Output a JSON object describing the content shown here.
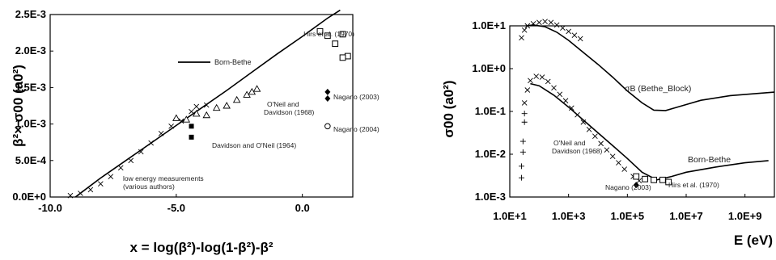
{
  "chart_data": [
    {
      "type": "scatter",
      "title": "",
      "xlabel": "x = log(β²)-log(1-β²)-β²",
      "ylabel": "β²× σ00 (a0²)",
      "xlim": [
        -10,
        2
      ],
      "ylim": [
        0,
        0.0025
      ],
      "x_ticks": [
        "-10.0",
        "-5.0",
        "0.0"
      ],
      "y_ticks": [
        "0.0E+0",
        "5.0E-4",
        "1.0E-3",
        "1.5E-3",
        "2.0E-3",
        "2.5E-3"
      ],
      "legend": {
        "label": "Born-Bethe",
        "position": "upper-left"
      },
      "series": [
        {
          "name": "Born-Bethe",
          "mark": "line",
          "points": [
            [
              -9.0,
              0.0
            ],
            [
              -8.5,
              0.00013
            ],
            [
              -8.0,
              0.00026
            ],
            [
              -7.0,
              0.0005
            ],
            [
              -6.0,
              0.00074
            ],
            [
              -5.0,
              0.00098
            ],
            [
              -4.0,
              0.00122
            ],
            [
              -3.0,
              0.00146
            ],
            [
              -2.0,
              0.00171
            ],
            [
              -1.0,
              0.00196
            ],
            [
              0.0,
              0.0022
            ],
            [
              1.0,
              0.00245
            ],
            [
              1.5,
              0.00256
            ]
          ]
        },
        {
          "name": "Hirs et al. (1970)",
          "mark": "open-square",
          "points": [
            [
              0.7,
              0.00227
            ],
            [
              1.0,
              0.00221
            ],
            [
              1.3,
              0.0021
            ],
            [
              1.6,
              0.00223
            ],
            [
              1.8,
              0.00193
            ],
            [
              1.6,
              0.00191
            ]
          ]
        },
        {
          "name": "O'Neil and Davidson (1968)",
          "mark": "open-triangle",
          "points": [
            [
              -5.0,
              0.00108
            ],
            [
              -4.6,
              0.00106
            ],
            [
              -4.2,
              0.00114
            ],
            [
              -3.8,
              0.00112
            ],
            [
              -3.4,
              0.00122
            ],
            [
              -3.0,
              0.00125
            ],
            [
              -2.6,
              0.00133
            ],
            [
              -2.2,
              0.0014
            ],
            [
              -2.0,
              0.00144
            ],
            [
              -1.8,
              0.00148
            ]
          ]
        },
        {
          "name": "Nagano (2003)",
          "mark": "filled-diamond",
          "points": [
            [
              1.0,
              0.00144
            ],
            [
              1.0,
              0.00135
            ]
          ]
        },
        {
          "name": "Nagano (2004)",
          "mark": "open-circle",
          "points": [
            [
              1.0,
              0.00097
            ]
          ]
        },
        {
          "name": "Davidson and O'Neil (1964)",
          "mark": "filled-square",
          "points": [
            [
              -4.4,
              0.00097
            ],
            [
              -4.4,
              0.00082
            ]
          ]
        },
        {
          "name": "low energy measurements (various authors)",
          "mark": "cross",
          "points": [
            [
              -9.2,
              2e-05
            ],
            [
              -8.8,
              5e-05
            ],
            [
              -8.4,
              0.0001
            ],
            [
              -8.0,
              0.00018
            ],
            [
              -7.6,
              0.00028
            ],
            [
              -7.2,
              0.0004
            ],
            [
              -6.8,
              0.0005
            ],
            [
              -6.4,
              0.00062
            ],
            [
              -6.0,
              0.00074
            ],
            [
              -5.6,
              0.00087
            ],
            [
              -5.2,
              0.00097
            ],
            [
              -4.8,
              0.00104
            ],
            [
              -4.4,
              0.00117
            ],
            [
              -4.2,
              0.00124
            ],
            [
              -3.8,
              0.00126
            ]
          ]
        }
      ],
      "annotations": [
        "Hirs et al. (1970)",
        "Born-Bethe",
        "O'Neil and",
        "Davidson (1968)",
        "Nagano (2003)",
        "Nagano (2004)",
        "Davidson and O'Neil (1964)",
        "low energy measurements",
        "(various authors)"
      ]
    },
    {
      "type": "line",
      "title": "",
      "xlabel": "E (eV)",
      "ylabel": "σ00 (a0²)",
      "xscale": "log",
      "yscale": "log",
      "xlim_exp": [
        1,
        10
      ],
      "ylim_exp": [
        -3,
        1
      ],
      "x_ticks": [
        "1.0E+1",
        "1.0E+3",
        "1.0E+5",
        "1.0E+7",
        "1.0E+9"
      ],
      "y_ticks": [
        "1.0E-3",
        "1.0E-2",
        "1.0E-1",
        "1.0E+0",
        "1.0E+1"
      ],
      "series": [
        {
          "name": "σB (Bethe_Block)",
          "mark": "line",
          "points_log": [
            [
              1.55,
              1.0
            ],
            [
              1.8,
              1.02
            ],
            [
              2.2,
              0.98
            ],
            [
              2.6,
              0.85
            ],
            [
              3.0,
              0.66
            ],
            [
              3.5,
              0.38
            ],
            [
              4.0,
              0.1
            ],
            [
              4.5,
              -0.2
            ],
            [
              5.0,
              -0.52
            ],
            [
              5.5,
              -0.8
            ],
            [
              5.9,
              -0.97
            ],
            [
              6.3,
              -0.98
            ],
            [
              6.8,
              -0.88
            ],
            [
              7.5,
              -0.74
            ],
            [
              8.5,
              -0.63
            ],
            [
              10.0,
              -0.55
            ]
          ]
        },
        {
          "name": "Born-Bethe",
          "mark": "line",
          "points_log": [
            [
              1.7,
              -0.35
            ],
            [
              2.0,
              -0.4
            ],
            [
              2.5,
              -0.62
            ],
            [
              3.0,
              -0.9
            ],
            [
              3.5,
              -1.2
            ],
            [
              4.0,
              -1.5
            ],
            [
              4.5,
              -1.8
            ],
            [
              5.0,
              -2.1
            ],
            [
              5.5,
              -2.42
            ],
            [
              6.0,
              -2.6
            ],
            [
              6.5,
              -2.52
            ],
            [
              7.0,
              -2.42
            ],
            [
              8.0,
              -2.3
            ],
            [
              9.0,
              -2.2
            ],
            [
              9.8,
              -2.15
            ]
          ]
        },
        {
          "name": "crosses",
          "mark": "cross",
          "points_log": [
            [
              1.4,
              0.72
            ],
            [
              1.5,
              0.9
            ],
            [
              1.6,
              1.0
            ],
            [
              1.8,
              1.05
            ],
            [
              2.0,
              1.08
            ],
            [
              2.2,
              1.1
            ],
            [
              2.4,
              1.08
            ],
            [
              2.6,
              1.02
            ],
            [
              2.8,
              0.95
            ],
            [
              3.0,
              0.87
            ],
            [
              3.2,
              0.78
            ],
            [
              3.4,
              0.7
            ]
          ]
        },
        {
          "name": "data",
          "mark": "cross",
          "points_log": [
            [
              1.5,
              -0.8
            ],
            [
              1.6,
              -0.5
            ],
            [
              1.7,
              -0.28
            ],
            [
              1.9,
              -0.18
            ],
            [
              2.1,
              -0.2
            ],
            [
              2.3,
              -0.3
            ],
            [
              2.5,
              -0.45
            ],
            [
              2.7,
              -0.6
            ],
            [
              2.9,
              -0.75
            ],
            [
              3.1,
              -0.92
            ],
            [
              3.3,
              -1.08
            ],
            [
              3.5,
              -1.25
            ],
            [
              3.7,
              -1.42
            ],
            [
              3.9,
              -1.58
            ],
            [
              4.1,
              -1.75
            ],
            [
              4.3,
              -1.9
            ],
            [
              4.5,
              -2.05
            ],
            [
              4.7,
              -2.2
            ],
            [
              4.9,
              -2.35
            ],
            [
              5.2,
              -2.52
            ],
            [
              5.4,
              -2.62
            ]
          ]
        },
        {
          "name": "plus",
          "mark": "plus",
          "points_log": [
            [
              1.4,
              -2.55
            ],
            [
              1.4,
              -2.28
            ],
            [
              1.45,
              -1.95
            ],
            [
              1.45,
              -1.7
            ],
            [
              1.5,
              -1.25
            ],
            [
              1.5,
              -1.05
            ]
          ]
        },
        {
          "name": "Hirs et al. (1970)",
          "mark": "open-square",
          "points_log": [
            [
              5.3,
              -2.52
            ],
            [
              5.6,
              -2.58
            ],
            [
              5.9,
              -2.6
            ],
            [
              6.2,
              -2.6
            ],
            [
              6.4,
              -2.65
            ]
          ]
        },
        {
          "name": "Nagano (2003)",
          "mark": "filled-diamond",
          "points_log": [
            [
              5.3,
              -2.72
            ]
          ]
        }
      ],
      "annotations": [
        "σB (Bethe_Block)",
        "O'Neil and",
        "Davidson (1968)",
        "Born-Bethe",
        "Nagano (2003)",
        "Hirs et al. (1970)"
      ]
    }
  ]
}
